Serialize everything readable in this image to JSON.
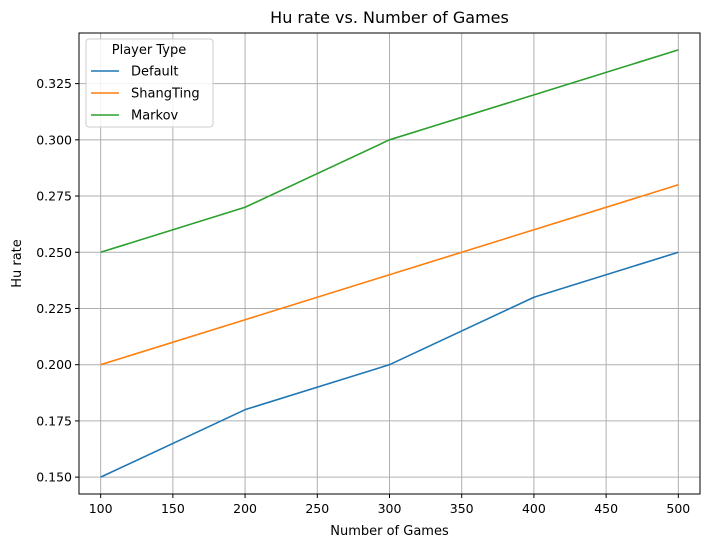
{
  "chart_data": {
    "type": "line",
    "title": "Hu rate vs. Number of Games",
    "xlabel": "Number of Games",
    "ylabel": "Hu rate",
    "x": [
      100,
      200,
      300,
      400,
      500
    ],
    "xlim": [
      85,
      515
    ],
    "ylim": [
      0.1425,
      0.3475
    ],
    "xticks": [
      100,
      150,
      200,
      250,
      300,
      350,
      400,
      450,
      500
    ],
    "yticks": [
      0.15,
      0.175,
      0.2,
      0.225,
      0.25,
      0.275,
      0.3,
      0.325
    ],
    "ytick_labels": [
      "0.150",
      "0.175",
      "0.200",
      "0.225",
      "0.250",
      "0.275",
      "0.300",
      "0.325"
    ],
    "grid": true,
    "legend": {
      "title": "Player Type",
      "placement": "top-left"
    },
    "series": [
      {
        "name": "Default",
        "color": "#1f77b4",
        "values": [
          0.15,
          0.18,
          0.2,
          0.23,
          0.25
        ]
      },
      {
        "name": "ShangTing",
        "color": "#ff7f0e",
        "values": [
          0.2,
          0.22,
          0.24,
          0.26,
          0.28
        ]
      },
      {
        "name": "Markov",
        "color": "#2ca02c",
        "values": [
          0.25,
          0.27,
          0.3,
          0.32,
          0.34
        ]
      }
    ]
  }
}
